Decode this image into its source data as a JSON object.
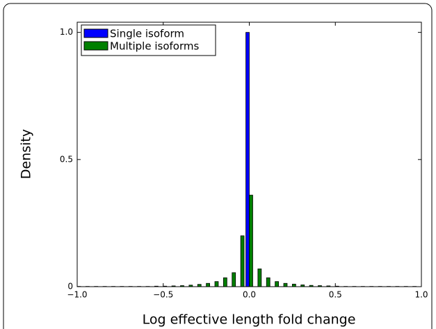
{
  "chart_data": {
    "type": "histogram",
    "xlabel": "Log effective length fold change",
    "ylabel": "Density",
    "bins": [
      -1.025,
      -0.975,
      -0.925,
      -0.875,
      -0.825,
      -0.775,
      -0.725,
      -0.675,
      -0.625,
      -0.575,
      -0.525,
      -0.475,
      -0.425,
      -0.375,
      -0.325,
      -0.275,
      -0.225,
      -0.175,
      -0.125,
      -0.075,
      -0.025,
      0.025,
      0.075,
      0.125,
      0.175,
      0.225,
      0.275,
      0.325,
      0.375,
      0.425,
      0.475,
      0.525,
      0.575,
      0.625,
      0.675,
      0.725,
      0.775,
      0.825,
      0.875,
      0.925,
      0.975,
      1.025
    ],
    "series": [
      {
        "name": "Single isoform",
        "color": "#0000ff",
        "values": [
          0,
          0,
          0,
          0,
          0,
          0,
          0,
          0,
          0,
          0,
          0,
          0,
          0,
          0,
          0,
          0,
          0,
          0,
          0,
          0,
          1.0,
          0,
          0,
          0,
          0,
          0,
          0,
          0,
          0,
          0,
          0,
          0,
          0,
          0,
          0,
          0,
          0,
          0,
          0,
          0,
          0
        ]
      },
      {
        "name": "Multiple isoforms",
        "color": "#007f00",
        "values": [
          0.001,
          0.001,
          0.001,
          0.001,
          0.001,
          0.001,
          0.001,
          0.001,
          0.001,
          0.002,
          0.002,
          0.003,
          0.004,
          0.006,
          0.009,
          0.013,
          0.02,
          0.035,
          0.055,
          0.2,
          0.36,
          0.07,
          0.035,
          0.02,
          0.013,
          0.01,
          0.007,
          0.005,
          0.004,
          0.003,
          0.002,
          0.001,
          0.001,
          0.001,
          0.001,
          0.001,
          0.001,
          0.001,
          0.001,
          0.001,
          0.001
        ]
      }
    ],
    "xlim": [
      -1.0,
      1.0
    ],
    "ylim": [
      0,
      1.04
    ],
    "xticks": [
      {
        "value": -1.0,
        "label": "−1.0"
      },
      {
        "value": -0.5,
        "label": "−0.5"
      },
      {
        "value": 0,
        "label": "0.0"
      },
      0.5,
      {
        "value": 1.0,
        "label": "1.0"
      }
    ],
    "yticks": [
      0,
      0.5,
      {
        "value": 1.0,
        "label": "1.0"
      }
    ],
    "legend": "upper left"
  }
}
